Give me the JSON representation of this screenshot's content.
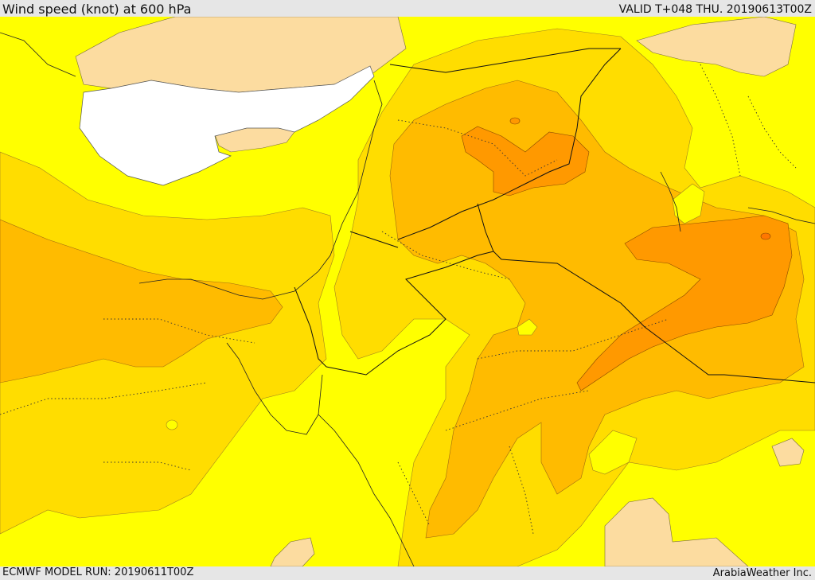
{
  "header": {
    "title": "Wind speed (knot) at 600 hPa",
    "valid": "VALID T+048 THU. 20190613T00Z"
  },
  "footer": {
    "model_run": "ECMWF MODEL RUN: 20190611T00Z",
    "credit": "ArabiaWeather Inc."
  },
  "map": {
    "colors": {
      "land_peach": "#fcdca0",
      "sea_white": "#ffffff",
      "band_yellow": "#ffff00",
      "band_gold": "#ffdd00",
      "band_amber": "#ffbb00",
      "band_orange": "#ff9900",
      "band_deep_orange": "#ff7700"
    }
  }
}
